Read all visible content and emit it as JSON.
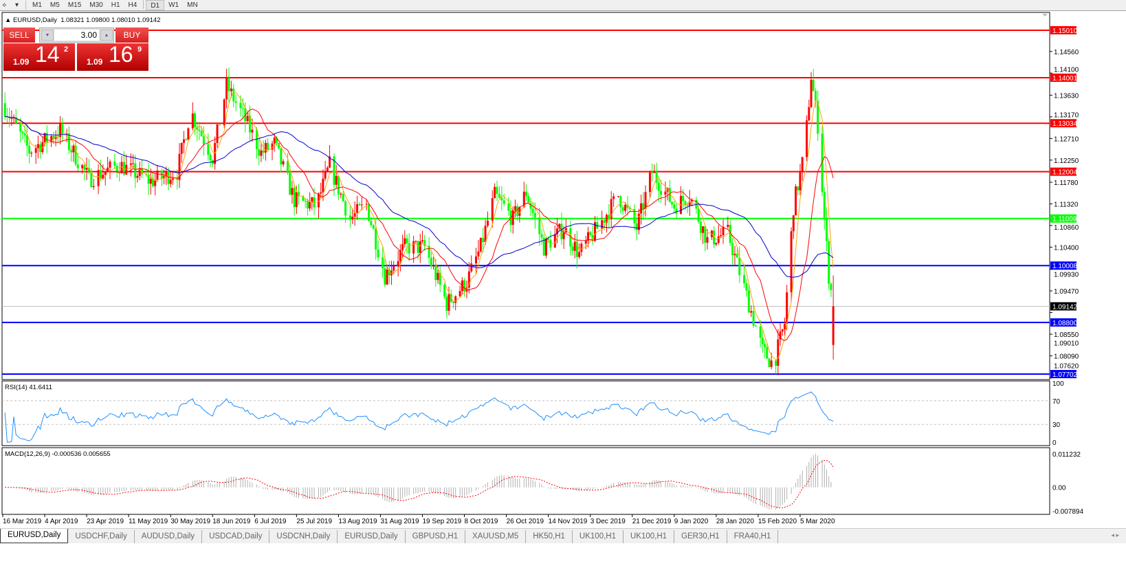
{
  "toolbar": {
    "timeframes": [
      "M1",
      "M5",
      "M15",
      "M30",
      "H1",
      "H4",
      "D1",
      "W1",
      "MN"
    ],
    "active": "D1"
  },
  "chart_header": {
    "symbol": "EURUSD,Daily",
    "ohlc": "1.08321 1.09800 1.08010 1.09142"
  },
  "trade_panel": {
    "sell_label": "SELL",
    "buy_label": "BUY",
    "lot": "3.00",
    "sell": {
      "small": "1.09",
      "big": "14",
      "pip": "2"
    },
    "buy": {
      "small": "1.09",
      "big": "16",
      "pip": "9"
    }
  },
  "colors": {
    "bull": "#ff0000",
    "bear": "#00ff00",
    "ma_fast": "#ffa500",
    "ma_mid": "#ff0000",
    "ma_slow": "#0000cd",
    "rsi": "#1e90ff",
    "macd_signal": "#ff0000",
    "macd_hist": "#b0b0b0"
  },
  "chart_data": {
    "type": "candlestick",
    "price_axis": {
      "range": [
        1.0762,
        1.1515
      ],
      "ticks": [
        "1.14560",
        "1.14100",
        "1.13630",
        "1.13170",
        "1.12710",
        "1.12250",
        "1.11780",
        "1.11320",
        "1.10860",
        "1.10400",
        "1.09930",
        "1.09470",
        "1.09010",
        "1.08550",
        "1.08090",
        "1.07620"
      ]
    },
    "x_ticks": [
      "16 Mar 2019",
      "4 Apr 2019",
      "23 Apr 2019",
      "11 May 2019",
      "30 May 2019",
      "18 Jun 2019",
      "6 Jul 2019",
      "25 Jul 2019",
      "13 Aug 2019",
      "31 Aug 2019",
      "19 Sep 2019",
      "8 Oct 2019",
      "26 Oct 2019",
      "14 Nov 2019",
      "3 Dec 2019",
      "21 Dec 2019",
      "9 Jan 2020",
      "28 Jan 2020",
      "15 Feb 2020",
      "5 Mar 2020"
    ],
    "approx_closes": [
      [
        "2019-03-16",
        1.1346
      ],
      [
        "2019-03-28",
        1.1244
      ],
      [
        "2019-04-11",
        1.1288
      ],
      [
        "2019-04-24",
        1.1185
      ],
      [
        "2019-05-07",
        1.1215
      ],
      [
        "2019-05-21",
        1.118
      ],
      [
        "2019-06-02",
        1.12
      ],
      [
        "2019-06-08",
        1.133
      ],
      [
        "2019-06-18",
        1.123
      ],
      [
        "2019-06-24",
        1.1383
      ],
      [
        "2019-07-01",
        1.132
      ],
      [
        "2019-07-09",
        1.124
      ],
      [
        "2019-07-15",
        1.126
      ],
      [
        "2019-07-24",
        1.114
      ],
      [
        "2019-08-03",
        1.1127
      ],
      [
        "2019-08-09",
        1.1215
      ],
      [
        "2019-08-18",
        1.11
      ],
      [
        "2019-08-25",
        1.113
      ],
      [
        "2019-09-02",
        1.098
      ],
      [
        "2019-09-11",
        1.104
      ],
      [
        "2019-09-20",
        1.104
      ],
      [
        "2019-09-30",
        1.092
      ],
      [
        "2019-10-09",
        1.0966
      ],
      [
        "2019-10-15",
        1.104
      ],
      [
        "2019-10-21",
        1.115
      ],
      [
        "2019-10-29",
        1.11
      ],
      [
        "2019-11-04",
        1.1156
      ],
      [
        "2019-11-12",
        1.104
      ],
      [
        "2019-11-21",
        1.108
      ],
      [
        "2019-11-28",
        1.1025
      ],
      [
        "2019-12-06",
        1.108
      ],
      [
        "2019-12-15",
        1.115
      ],
      [
        "2019-12-23",
        1.108
      ],
      [
        "2019-12-30",
        1.12
      ],
      [
        "2020-01-09",
        1.1127
      ],
      [
        "2020-01-16",
        1.115
      ],
      [
        "2020-01-24",
        1.1054
      ],
      [
        "2020-02-02",
        1.107
      ],
      [
        "2020-02-10",
        1.0937
      ],
      [
        "2020-02-17",
        1.082
      ],
      [
        "2020-02-22",
        1.079
      ],
      [
        "2020-02-27",
        1.0878
      ],
      [
        "2020-03-02",
        1.1127
      ],
      [
        "2020-03-07",
        1.124
      ],
      [
        "2020-03-10",
        1.1404
      ],
      [
        "2020-03-13",
        1.13
      ],
      [
        "2020-03-16",
        1.11
      ],
      [
        "2020-03-18",
        1.098
      ],
      [
        "2020-03-20",
        1.09142
      ]
    ],
    "levels": [
      {
        "price": "1.15010",
        "color": "#ff0000"
      },
      {
        "price": "1.14001",
        "color": "#ff0000"
      },
      {
        "price": "1.13034",
        "color": "#ff0000"
      },
      {
        "price": "1.12004",
        "color": "#ff0000"
      },
      {
        "price": "1.11009",
        "color": "#00ff00"
      },
      {
        "price": "1.10008",
        "color": "#0000ff"
      },
      {
        "price": "1.08800",
        "color": "#0000ff"
      },
      {
        "price": "1.07702",
        "color": "#0000ff"
      }
    ],
    "bid": "1.09142",
    "rsi": {
      "label": "RSI(14) 41.6411",
      "ticks": [
        "100",
        "70",
        "30",
        "0"
      ]
    },
    "macd": {
      "label": "MACD(12,26,9) -0.000536 0.005655",
      "ticks": [
        "0.011232",
        "0.00",
        "-0.007894"
      ],
      "range": [
        -0.007894,
        0.011232
      ]
    }
  },
  "tabs": [
    "EURUSD,Daily",
    "USDCHF,Daily",
    "AUDUSD,Daily",
    "USDCAD,Daily",
    "USDCNH,Daily",
    "EURUSD,Daily",
    "GBPUSD,H1",
    "XAUUSD,M5",
    "HK50,H1",
    "UK100,H1",
    "UK100,H1",
    "GER30,H1",
    "FRA40,H1"
  ],
  "tab_scroll": "◂ ▸"
}
